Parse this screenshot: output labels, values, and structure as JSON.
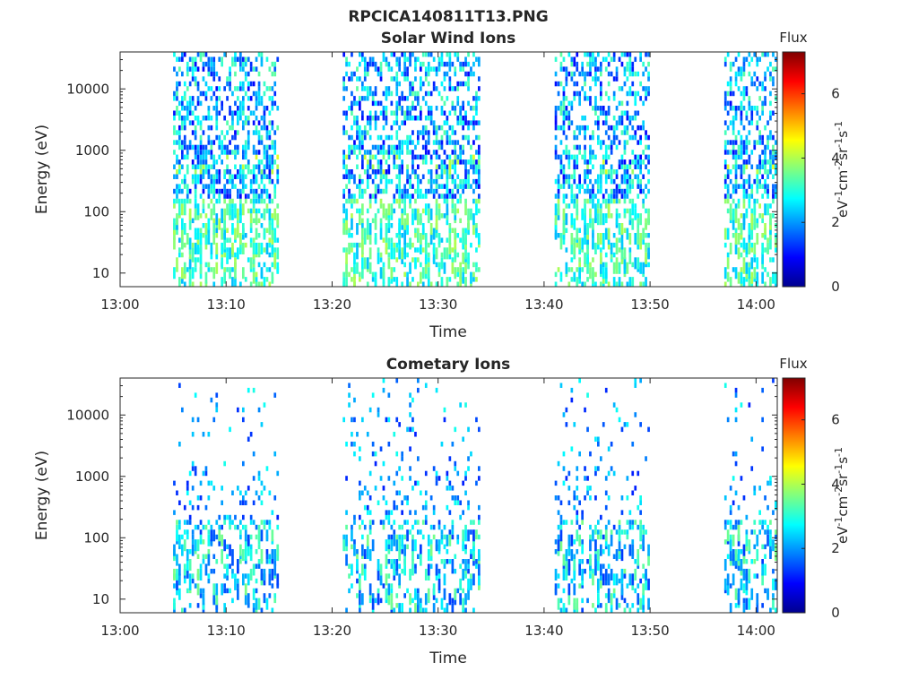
{
  "figure_title": "RPCICA140811T13.PNG",
  "chart_data": [
    {
      "type": "heatmap",
      "title": "Solar Wind Ions",
      "xlabel": "Time",
      "ylabel": "Energy (eV)",
      "x_ticks": [
        "13:00",
        "13:10",
        "13:20",
        "13:30",
        "13:40",
        "13:50",
        "14:00"
      ],
      "x_range": [
        "13:00",
        "14:02"
      ],
      "y_scale": "log",
      "y_ticks": [
        "10",
        "100",
        "1000",
        "10000"
      ],
      "y_range": [
        6,
        40000
      ],
      "colorbar": {
        "title": "Flux",
        "label": "eV-1cm-2sr-1s-1",
        "ticks": [
          "0",
          "2",
          "4",
          "6"
        ],
        "range": [
          0,
          7.3
        ],
        "colormap": "jet"
      },
      "active_intervals": [
        [
          "13:05",
          "13:15"
        ],
        [
          "13:21",
          "13:34"
        ],
        [
          "13:41",
          "13:50"
        ],
        [
          "13:57",
          "14:02"
        ]
      ],
      "grid": false,
      "seed": 7
    },
    {
      "type": "heatmap",
      "title": "Cometary Ions",
      "xlabel": "Time",
      "ylabel": "Energy (eV)",
      "x_ticks": [
        "13:00",
        "13:10",
        "13:20",
        "13:30",
        "13:40",
        "13:50",
        "14:00"
      ],
      "x_range": [
        "13:00",
        "14:02"
      ],
      "y_scale": "log",
      "y_ticks": [
        "10",
        "100",
        "1000",
        "10000"
      ],
      "y_range": [
        6,
        40000
      ],
      "colorbar": {
        "title": "Flux",
        "label": "eV-1cm-2sr-1s-1",
        "ticks": [
          "0",
          "2",
          "4",
          "6"
        ],
        "range": [
          0,
          7.3
        ],
        "colormap": "jet"
      },
      "active_intervals": [
        [
          "13:05",
          "13:15"
        ],
        [
          "13:21",
          "13:34"
        ],
        [
          "13:41",
          "13:50"
        ],
        [
          "13:57",
          "14:02"
        ]
      ],
      "grid": false,
      "seed": 31
    }
  ]
}
